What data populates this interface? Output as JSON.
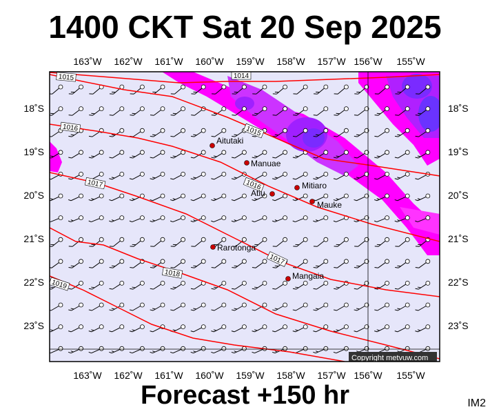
{
  "title": "1400 CKT Sat 20 Sep 2025",
  "footer": "Forecast +150 hr",
  "code": "IM2",
  "copyright": "Copyright metvuw.com",
  "lon_labels": [
    "163˚W",
    "162˚W",
    "161˚W",
    "160˚W",
    "159˚W",
    "158˚W",
    "157˚W",
    "156˚W",
    "155˚W"
  ],
  "lat_labels": [
    "18˚S",
    "19˚S",
    "20˚S",
    "21˚S",
    "22˚S",
    "23˚S"
  ],
  "places": [
    {
      "name": "Aitutaki"
    },
    {
      "name": "Manuae"
    },
    {
      "name": "Mitiaro"
    },
    {
      "name": "Atiu"
    },
    {
      "name": "Mauke"
    },
    {
      "name": "Rarotonga"
    },
    {
      "name": "Mangaia"
    }
  ],
  "isobars": [
    "1014",
    "1015",
    "1016",
    "1017",
    "1018",
    "1019"
  ],
  "colors": {
    "background": "#e6e6fa",
    "isobar": "#ff0000",
    "rain_light": "#ff00ff",
    "rain_mid": "#cc33ff",
    "rain_heavy": "#6a33ff",
    "frame": "#000000"
  }
}
